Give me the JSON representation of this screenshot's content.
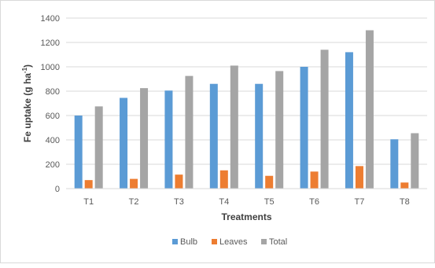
{
  "chart_data": {
    "type": "bar",
    "title": "",
    "xlabel": "Treatments",
    "ylabel_main": "Fe uptake (g ha",
    "ylabel_sup": "-1",
    "ylabel_close": ")",
    "ylim": [
      0,
      1400
    ],
    "yticks": [
      0,
      200,
      400,
      600,
      800,
      1000,
      1200,
      1400
    ],
    "grid": "horizontal",
    "legend_position": "bottom",
    "categories": [
      "T1",
      "T2",
      "T3",
      "T4",
      "T5",
      "T6",
      "T7",
      "T8"
    ],
    "series": [
      {
        "name": "Bulb",
        "color": "#5b9bd5",
        "values": [
          600,
          745,
          805,
          860,
          860,
          1000,
          1120,
          405
        ]
      },
      {
        "name": "Leaves",
        "color": "#ed7d31",
        "values": [
          70,
          80,
          115,
          150,
          105,
          140,
          185,
          50
        ]
      },
      {
        "name": "Total",
        "color": "#a5a5a5",
        "values": [
          675,
          825,
          925,
          1010,
          965,
          1140,
          1300,
          455
        ]
      }
    ]
  }
}
